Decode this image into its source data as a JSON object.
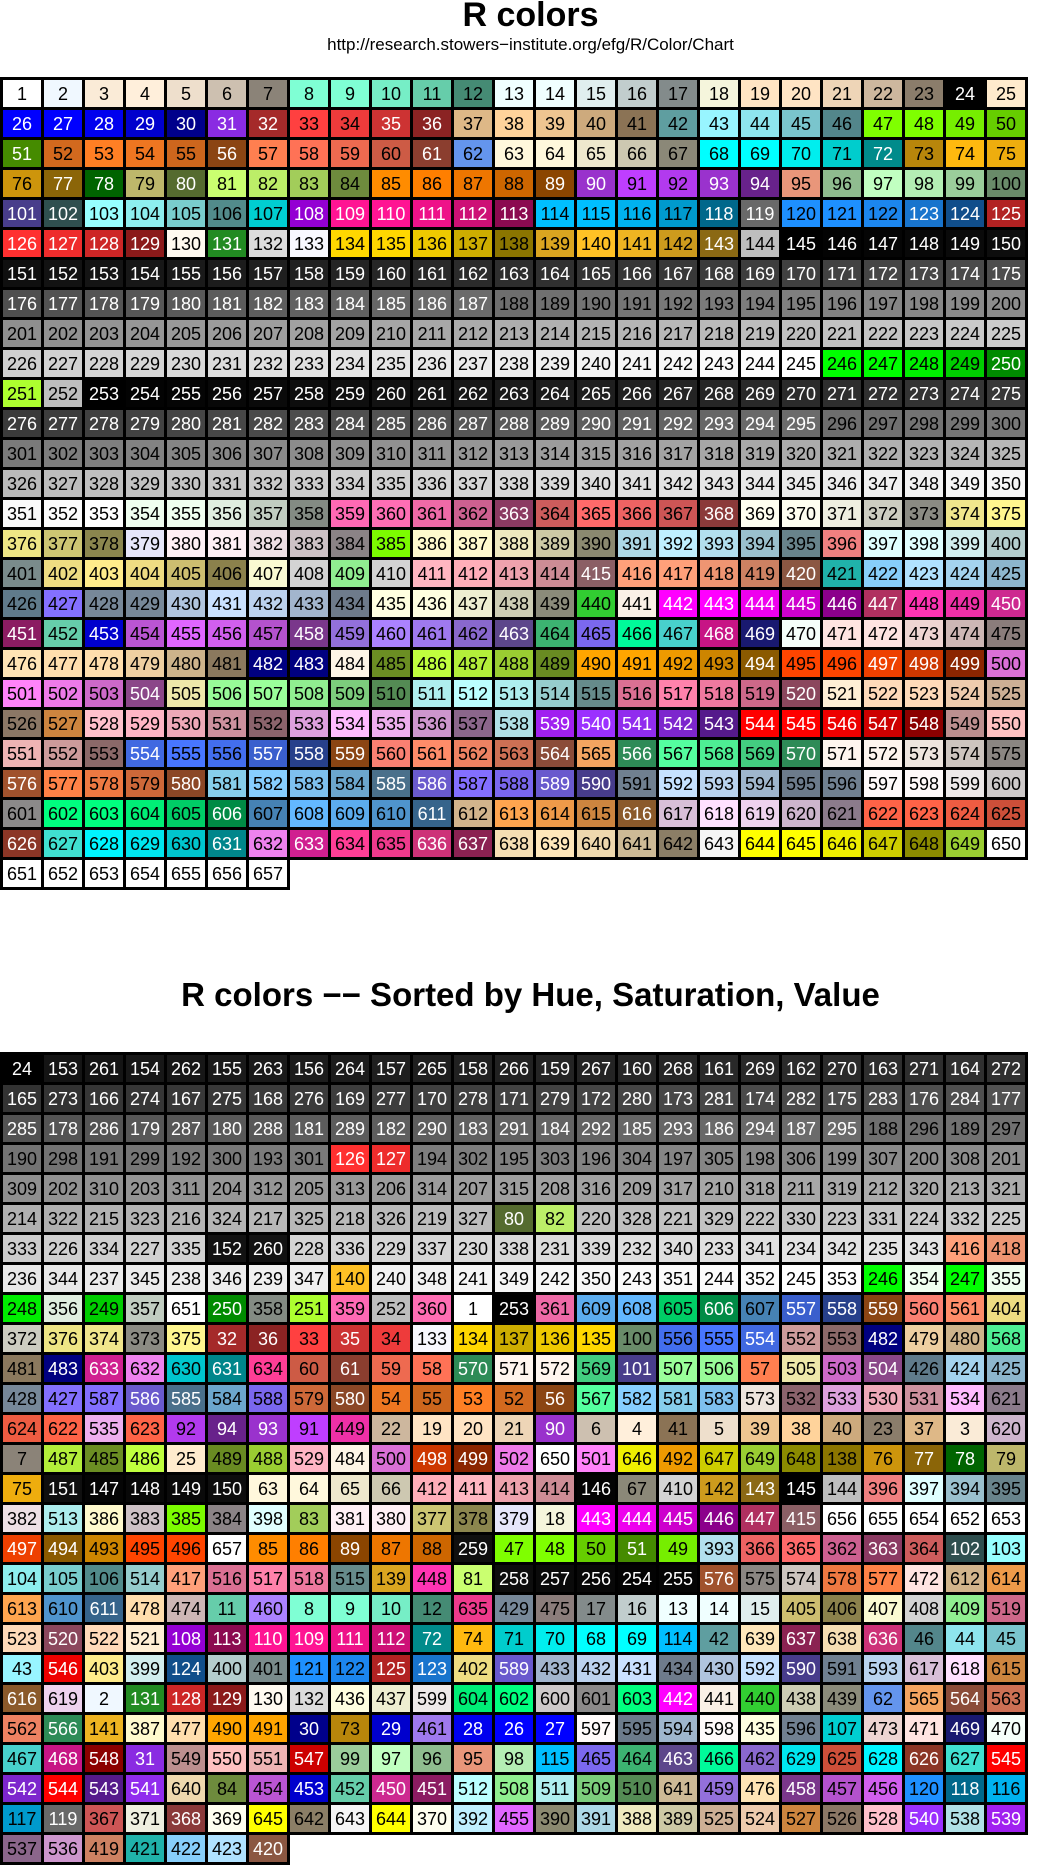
{
  "title": "R colors",
  "subtitle": "http://research.stowers−institute.org/efg/R/Color/Chart",
  "title2": "R colors −− Sorted by Hue, Saturation, Value",
  "chart_data": [
    {
      "type": "table",
      "title": "R colors",
      "subtitle": "http://research.stowers−institute.org/efg/R/Color/Chart",
      "columns": 25,
      "count": 657,
      "order": "index"
    },
    {
      "type": "table",
      "title": "R colors −− Sorted by Hue, Saturation, Value",
      "columns": 25,
      "order": [
        24,
        153,
        261,
        154,
        262,
        155,
        263,
        156,
        264,
        157,
        265,
        158,
        266,
        159,
        267,
        160,
        268,
        161,
        269,
        162,
        270,
        163,
        271,
        164,
        272,
        165,
        273,
        166,
        274,
        167,
        275,
        168,
        276,
        169,
        277,
        170,
        278,
        171,
        279,
        172,
        280,
        173,
        281,
        174,
        282,
        175,
        283,
        176,
        284,
        177,
        285,
        178,
        286,
        179,
        287,
        180,
        288,
        181,
        289,
        182,
        290,
        183,
        291,
        184,
        292,
        185,
        293,
        186,
        294,
        187,
        295,
        188,
        296,
        189,
        297,
        190,
        298,
        191,
        299,
        192,
        300,
        193,
        301,
        126,
        127,
        194,
        302,
        195,
        303,
        196,
        304,
        197,
        305,
        198,
        306,
        199,
        307,
        200,
        308,
        201,
        309,
        202,
        310,
        203,
        311,
        204,
        312,
        205,
        313,
        206,
        314,
        207,
        315,
        208,
        316,
        209,
        317,
        210,
        318,
        211,
        319,
        212,
        320,
        213,
        321,
        214,
        322,
        215,
        323,
        216,
        324,
        217,
        325,
        218,
        326,
        219,
        327,
        80,
        82,
        220,
        328,
        221,
        329,
        222,
        330,
        223,
        331,
        224,
        332,
        225,
        333,
        226,
        334,
        227,
        335,
        152,
        260,
        228,
        336,
        229,
        337,
        230,
        338,
        231,
        339,
        232,
        340,
        233,
        341,
        234,
        342,
        235,
        343,
        416,
        418,
        236,
        344,
        237,
        345,
        238,
        346,
        239,
        347,
        140,
        240,
        348,
        241,
        349,
        242,
        350,
        243,
        351,
        244,
        352,
        245,
        353,
        246,
        354,
        247,
        355,
        248,
        356,
        249,
        357,
        651,
        250,
        358,
        251,
        359,
        252,
        360,
        1,
        253,
        361,
        609,
        608,
        605,
        606,
        607,
        557,
        558,
        559,
        560,
        561,
        404,
        372,
        376,
        374,
        373,
        375,
        32,
        36,
        33,
        35,
        34,
        133,
        134,
        137,
        136,
        135,
        100,
        556,
        555,
        554,
        552,
        553,
        482,
        479,
        480,
        568,
        481,
        483,
        633,
        632,
        630,
        631,
        634,
        60,
        61,
        59,
        58,
        570,
        571,
        572,
        569,
        101,
        507,
        506,
        57,
        505,
        503,
        504,
        426,
        424,
        425,
        428,
        427,
        587,
        586,
        585,
        584,
        588,
        579,
        580,
        54,
        55,
        53,
        52,
        56,
        567,
        582,
        581,
        583,
        573,
        532,
        533,
        530,
        531,
        534,
        621,
        624,
        622,
        535,
        623,
        92,
        94,
        93,
        91,
        449,
        22,
        19,
        20,
        21,
        90,
        6,
        4,
        41,
        5,
        39,
        38,
        40,
        23,
        37,
        3,
        620,
        7,
        487,
        485,
        486,
        25,
        489,
        488,
        529,
        484,
        500,
        498,
        499,
        502,
        650,
        501,
        646,
        492,
        647,
        649,
        648,
        138,
        76,
        77,
        78,
        79,
        75,
        151,
        147,
        148,
        149,
        150,
        63,
        64,
        65,
        66,
        412,
        411,
        413,
        414,
        146,
        67,
        410,
        142,
        143,
        145,
        144,
        396,
        397,
        394,
        395,
        382,
        513,
        386,
        383,
        385,
        384,
        398,
        83,
        381,
        380,
        377,
        378,
        379,
        18,
        443,
        444,
        445,
        446,
        447,
        415,
        656,
        655,
        654,
        652,
        653,
        497,
        494,
        493,
        495,
        496,
        657,
        85,
        86,
        89,
        87,
        88,
        259,
        47,
        48,
        50,
        51,
        49,
        393,
        366,
        365,
        362,
        363,
        364,
        102,
        103,
        104,
        105,
        106,
        514,
        417,
        516,
        517,
        518,
        515,
        139,
        448,
        81,
        258,
        257,
        256,
        254,
        255,
        576,
        575,
        574,
        578,
        577,
        472,
        612,
        614,
        613,
        610,
        611,
        478,
        474,
        11,
        460,
        8,
        9,
        10,
        12,
        635,
        429,
        475,
        17,
        16,
        13,
        14,
        15,
        405,
        406,
        407,
        408,
        409,
        519,
        523,
        520,
        522,
        521,
        108,
        113,
        110,
        109,
        111,
        112,
        72,
        74,
        71,
        70,
        68,
        69,
        114,
        42,
        639,
        637,
        638,
        636,
        46,
        44,
        45,
        43,
        546,
        403,
        399,
        124,
        400,
        401,
        121,
        122,
        125,
        123,
        402,
        589,
        433,
        432,
        431,
        434,
        430,
        592,
        590,
        591,
        593,
        617,
        618,
        615,
        616,
        619,
        2,
        131,
        128,
        129,
        130,
        132,
        436,
        437,
        599,
        604,
        602,
        600,
        601,
        603,
        442,
        441,
        440,
        438,
        439,
        62,
        565,
        564,
        563,
        562,
        566,
        141,
        387,
        477,
        490,
        491,
        30,
        73,
        29,
        461,
        28,
        26,
        27,
        597,
        595,
        594,
        598,
        435,
        596,
        107,
        473,
        471,
        469,
        470,
        467,
        468,
        548,
        31,
        549,
        550,
        551,
        547,
        99,
        97,
        96,
        95,
        98,
        115,
        465,
        464,
        463,
        466,
        462,
        629,
        625,
        628,
        626,
        627,
        545,
        542,
        544,
        543,
        541,
        640,
        84,
        454,
        453,
        452,
        450,
        451,
        512,
        508,
        511,
        509,
        510,
        641,
        459,
        476,
        458,
        457,
        456,
        120,
        118,
        116,
        117,
        119,
        367,
        371,
        368,
        369,
        645,
        642,
        643,
        644,
        370,
        392,
        455,
        390,
        391,
        388,
        389,
        525,
        524,
        527,
        526,
        528,
        540,
        538,
        539,
        537,
        536,
        419,
        421,
        422,
        423,
        420
      ]
    }
  ],
  "colors": [
    "#FFFFFF",
    "#F0F8FF",
    "#FAEBD7",
    "#FFEFDB",
    "#EEDFCC",
    "#CDC0B0",
    "#8B8378",
    "#7FFFD4",
    "#7FFFD4",
    "#76EEC6",
    "#66CDAA",
    "#458B74",
    "#F0FFFF",
    "#F0FFFF",
    "#E0EEEE",
    "#C1CDCD",
    "#838B8B",
    "#F5F5DC",
    "#FFE4C4",
    "#FFE4C4",
    "#EED5B7",
    "#CDB79E",
    "#8B7D6B",
    "#000000",
    "#FFEBCD",
    "#0000FF",
    "#0000FF",
    "#0000EE",
    "#0000CD",
    "#00008B",
    "#8A2BE2",
    "#A52A2A",
    "#FF4040",
    "#EE3B3B",
    "#CD3333",
    "#8B2323",
    "#DEB887",
    "#FFD39B",
    "#EEC591",
    "#CDAA7D",
    "#8B7355",
    "#5F9EA0",
    "#98F5FF",
    "#8EE5EE",
    "#7AC5CD",
    "#53868B",
    "#7FFF00",
    "#7FFF00",
    "#76EE00",
    "#66CD00",
    "#458B00",
    "#D2691E",
    "#FF7F24",
    "#EE7621",
    "#CD661D",
    "#8B4513",
    "#FF7F50",
    "#FF7256",
    "#EE6A50",
    "#CD5B45",
    "#8B3E2F",
    "#6495ED",
    "#FFF8DC",
    "#FFF8DC",
    "#EEE8CD",
    "#CDC8B1",
    "#8B8878",
    "#00FFFF",
    "#00FFFF",
    "#00EEEE",
    "#00CDCD",
    "#008B8B",
    "#B8860B",
    "#FFB90F",
    "#EEAD0E",
    "#CD950C",
    "#8B6508",
    "#006400",
    "#BDB76B",
    "#556B2F",
    "#CAFF70",
    "#BCEE68",
    "#A2CD5A",
    "#6E8B3D",
    "#FF8C00",
    "#FF7F00",
    "#EE7600",
    "#CD6600",
    "#8B4500",
    "#9932CC",
    "#BF3EFF",
    "#B23AEE",
    "#9A32CD",
    "#68228B",
    "#E9967A",
    "#8FBC8F",
    "#C1FFC1",
    "#B4EEB4",
    "#9BCD9B",
    "#698B69",
    "#483D8B",
    "#2F4F4F",
    "#97FFFF",
    "#8DEEEE",
    "#79CDCD",
    "#528B8B",
    "#00CED1",
    "#9400D3",
    "#FF1493",
    "#FF1493",
    "#EE1289",
    "#CD1076",
    "#8B0A50",
    "#00BFFF",
    "#00BFFF",
    "#00B2EE",
    "#009ACD",
    "#00688B",
    "#696969",
    "#1E90FF",
    "#1E90FF",
    "#1C86EE",
    "#1874CD",
    "#104E8B",
    "#B22222",
    "#FF3030",
    "#EE2C2C",
    "#CD2626",
    "#8B1A1A",
    "#FFFAF0",
    "#228B22",
    "#DCDCDC",
    "#F8F8FF",
    "#FFD700",
    "#FFD700",
    "#EEC900",
    "#CDAD00",
    "#8B7500",
    "#DAA520",
    "#FFC125",
    "#EEB422",
    "#CD9B1D",
    "#8B6914",
    "#BEBEBE",
    "#000000",
    "#030303",
    "#050505",
    "#080808",
    "#0A0A0A",
    "#0D0D0D",
    "#0F0F0F",
    "#121212",
    "#141414",
    "#171717",
    "#1A1A1A",
    "#1C1C1C",
    "#1F1F1F",
    "#212121",
    "#242424",
    "#262626",
    "#292929",
    "#2B2B2B",
    "#2E2E2E",
    "#303030",
    "#333333",
    "#363636",
    "#383838",
    "#3B3B3B",
    "#3D3D3D",
    "#404040",
    "#424242",
    "#454545",
    "#474747",
    "#4A4A4A",
    "#4D4D4D",
    "#4F4F4F",
    "#525252",
    "#545454",
    "#575757",
    "#595959",
    "#5C5C5C",
    "#5E5E5E",
    "#616161",
    "#636363",
    "#666666",
    "#696969",
    "#6B6B6B",
    "#6E6E6E",
    "#707070",
    "#737373",
    "#757575",
    "#787878",
    "#7A7A7A",
    "#7D7D7D",
    "#7F7F7F",
    "#828282",
    "#858585",
    "#878787",
    "#8A8A8A",
    "#8C8C8C",
    "#8F8F8F",
    "#919191",
    "#949494",
    "#969696",
    "#999999",
    "#9C9C9C",
    "#9E9E9E",
    "#A1A1A1",
    "#A3A3A3",
    "#A6A6A6",
    "#A8A8A8",
    "#ABABAB",
    "#ADADAD",
    "#B0B0B0",
    "#B3B3B3",
    "#B5B5B5",
    "#B8B8B8",
    "#BABABA",
    "#BDBDBD",
    "#BFBFBF",
    "#C2C2C2",
    "#C4C4C4",
    "#C7C7C7",
    "#C9C9C9",
    "#CCCCCC",
    "#CFCFCF",
    "#D1D1D1",
    "#D4D4D4",
    "#D6D6D6",
    "#D9D9D9",
    "#DBDBDB",
    "#DEDEDE",
    "#E0E0E0",
    "#E3E3E3",
    "#E5E5E5",
    "#E8E8E8",
    "#EBEBEB",
    "#EDEDED",
    "#F0F0F0",
    "#F2F2F2",
    "#F5F5F5",
    "#F7F7F7",
    "#FAFAFA",
    "#FCFCFC",
    "#FFFFFF",
    "#00FF00",
    "#00FF00",
    "#00EE00",
    "#00CD00",
    "#008B00",
    "#ADFF2F",
    "#BEBEBE",
    "#000000",
    "#030303",
    "#050505",
    "#080808",
    "#0A0A0A",
    "#0D0D0D",
    "#0F0F0F",
    "#121212",
    "#141414",
    "#171717",
    "#1A1A1A",
    "#1C1C1C",
    "#1F1F1F",
    "#212121",
    "#242424",
    "#262626",
    "#292929",
    "#2B2B2B",
    "#2E2E2E",
    "#303030",
    "#333333",
    "#363636",
    "#383838",
    "#3B3B3B",
    "#3D3D3D",
    "#404040",
    "#424242",
    "#454545",
    "#474747",
    "#4A4A4A",
    "#4D4D4D",
    "#4F4F4F",
    "#525252",
    "#545454",
    "#575757",
    "#595959",
    "#5C5C5C",
    "#5E5E5E",
    "#616161",
    "#636363",
    "#666666",
    "#696969",
    "#6B6B6B",
    "#6E6E6E",
    "#707070",
    "#737373",
    "#757575",
    "#787878",
    "#7A7A7A",
    "#7D7D7D",
    "#7F7F7F",
    "#828282",
    "#858585",
    "#878787",
    "#8A8A8A",
    "#8C8C8C",
    "#8F8F8F",
    "#919191",
    "#949494",
    "#969696",
    "#999999",
    "#9C9C9C",
    "#9E9E9E",
    "#A1A1A1",
    "#A3A3A3",
    "#A6A6A6",
    "#A8A8A8",
    "#ABABAB",
    "#ADADAD",
    "#B0B0B0",
    "#B3B3B3",
    "#B5B5B5",
    "#B8B8B8",
    "#BABABA",
    "#BDBDBD",
    "#BFBFBF",
    "#C2C2C2",
    "#C4C4C4",
    "#C7C7C7",
    "#C9C9C9",
    "#CCCCCC",
    "#CFCFCF",
    "#D1D1D1",
    "#D4D4D4",
    "#D6D6D6",
    "#D9D9D9",
    "#DBDBDB",
    "#DEDEDE",
    "#E0E0E0",
    "#E3E3E3",
    "#E5E5E5",
    "#E8E8E8",
    "#EBEBEB",
    "#EDEDED",
    "#F0F0F0",
    "#F2F2F2",
    "#F5F5F5",
    "#F7F7F7",
    "#FAFAFA",
    "#FCFCFC",
    "#FFFFFF",
    "#F0FFF0",
    "#F0FFF0",
    "#E0EEE0",
    "#C1CDC1",
    "#838B83",
    "#FF69B4",
    "#FF6EB4",
    "#EE6AA7",
    "#CD6090",
    "#8B3A62",
    "#CD5C5C",
    "#FF6A6A",
    "#EE6363",
    "#CD5555",
    "#8B3A3A",
    "#FFFFF0",
    "#FFFFF0",
    "#EEEEE0",
    "#CDCDC1",
    "#8B8B83",
    "#F0E68C",
    "#FFF68F",
    "#EEE685",
    "#CDC673",
    "#8B864E",
    "#E6E6FA",
    "#FFF0F5",
    "#FFF0F5",
    "#EEE0E5",
    "#CDC1C5",
    "#8B8386",
    "#7CFC00",
    "#FFFACD",
    "#FFFACD",
    "#EEE9BF",
    "#CDC9A5",
    "#8B8970",
    "#ADD8E6",
    "#BFEFFF",
    "#B2DFEE",
    "#9AC0CD",
    "#68838B",
    "#F08080",
    "#E0FFFF",
    "#E0FFFF",
    "#D1EEEE",
    "#B4CDCD",
    "#7A8B8B",
    "#EEDD82",
    "#FFEC8B",
    "#EEDC82",
    "#CDBE70",
    "#8B814C",
    "#FAFAD2",
    "#D3D3D3",
    "#90EE90",
    "#D3D3D3",
    "#FFB6C1",
    "#FFAEB9",
    "#EEA2AD",
    "#CD8C95",
    "#8B5F65",
    "#FFA07A",
    "#FFA07A",
    "#EE9572",
    "#CD8162",
    "#8B5742",
    "#20B2AA",
    "#87CEFA",
    "#B0E2FF",
    "#A4D3EE",
    "#8DB6CD",
    "#607B8B",
    "#8470FF",
    "#778899",
    "#778899",
    "#B0C4DE",
    "#CAE1FF",
    "#BCD2EE",
    "#A2B5CD",
    "#6E7B8B",
    "#FFFFE0",
    "#FFFFE0",
    "#EEEED1",
    "#CDCDB4",
    "#8B8B7A",
    "#32CD32",
    "#FAF0E6",
    "#FF00FF",
    "#FF00FF",
    "#EE00EE",
    "#CD00CD",
    "#8B008B",
    "#B03060",
    "#FF34B3",
    "#EE30A7",
    "#CD2990",
    "#8B1C62",
    "#66CDAA",
    "#0000CD",
    "#BA55D3",
    "#E066FF",
    "#D15FEE",
    "#B452CD",
    "#7A378B",
    "#9370DB",
    "#AB82FF",
    "#9F79EE",
    "#8968CD",
    "#5D478B",
    "#3CB371",
    "#7B68EE",
    "#00FA9A",
    "#48D1CC",
    "#C71585",
    "#191970",
    "#F5FFFA",
    "#FFE4E1",
    "#FFE4E1",
    "#EED5D2",
    "#CDB7B5",
    "#8B7D7B",
    "#FFE4B5",
    "#FFDEAD",
    "#FFDEAD",
    "#EECFA1",
    "#CDB38B",
    "#8B795E",
    "#000080",
    "#000080",
    "#FDF5E6",
    "#6B8E23",
    "#C0FF3E",
    "#B3EE3A",
    "#9ACD32",
    "#698B22",
    "#FFA500",
    "#FFA500",
    "#EE9A00",
    "#CD8500",
    "#8B5A00",
    "#FF4500",
    "#FF4500",
    "#EE4000",
    "#CD3700",
    "#8B2500",
    "#DA70D6",
    "#FF83FA",
    "#EE7AE9",
    "#CD69C9",
    "#8B4789",
    "#EEE8AA",
    "#98FB98",
    "#9AFF9A",
    "#90EE90",
    "#7CCD7C",
    "#548B54",
    "#AFEEEE",
    "#BBFFFF",
    "#AEEEEE",
    "#96CDCD",
    "#668B8B",
    "#DB7093",
    "#FF82AB",
    "#EE799F",
    "#CD6889",
    "#8B475D",
    "#FFEFD5",
    "#FFDAB9",
    "#FFDAB9",
    "#EECBAD",
    "#CDAF95",
    "#8B7765",
    "#CD853F",
    "#FFC0CB",
    "#FFB5C5",
    "#EEA9B8",
    "#CD919E",
    "#8B636C",
    "#DDA0DD",
    "#FFBBFF",
    "#EEAEEE",
    "#CD96CD",
    "#8B668B",
    "#B0E0E6",
    "#A020F0",
    "#9B30FF",
    "#912CEE",
    "#7D26CD",
    "#551A8B",
    "#FF0000",
    "#FF0000",
    "#EE0000",
    "#CD0000",
    "#8B0000",
    "#BC8F8F",
    "#FFC1C1",
    "#EEB4B4",
    "#CD9B9B",
    "#8B6969",
    "#4169E1",
    "#4876FF",
    "#436EEE",
    "#3A5FCD",
    "#27408B",
    "#8B4513",
    "#FA8072",
    "#FF8C69",
    "#EE8262",
    "#CD7054",
    "#8B4C39",
    "#F4A460",
    "#2E8B57",
    "#54FF9F",
    "#4EEE94",
    "#43CD80",
    "#2E8B57",
    "#FFF5EE",
    "#FFF5EE",
    "#EEE5DE",
    "#CDC5BF",
    "#8B8682",
    "#A0522D",
    "#FF8247",
    "#EE7942",
    "#CD6839",
    "#8B4726",
    "#87CEEB",
    "#87CEFF",
    "#7EC0EE",
    "#6CA6CD",
    "#4A708B",
    "#6A5ACD",
    "#836FFF",
    "#7A67EE",
    "#6959CD",
    "#473C8B",
    "#708090",
    "#C6E2FF",
    "#B9D3EE",
    "#9FB6CD",
    "#6C7B8B",
    "#708090",
    "#FFFAFA",
    "#FFFAFA",
    "#EEE9E9",
    "#CDC9C9",
    "#8B8989",
    "#00FF7F",
    "#00FF7F",
    "#00EE76",
    "#00CD66",
    "#008B45",
    "#4682B4",
    "#63B8FF",
    "#5CACEE",
    "#4F94CD",
    "#36648B",
    "#D2B48C",
    "#FFA54F",
    "#EE9A49",
    "#CD853F",
    "#8B5A2B",
    "#D8BFD8",
    "#FFE1FF",
    "#EED2EE",
    "#CDB5CD",
    "#8B7B8B",
    "#FF6347",
    "#FF6347",
    "#EE5C42",
    "#CD4F39",
    "#8B3626",
    "#40E0D0",
    "#00F5FF",
    "#00E5EE",
    "#00C5CD",
    "#00868B",
    "#EE82EE",
    "#D02090",
    "#FF3E96",
    "#EE3A8C",
    "#CD3278",
    "#8B2252",
    "#F5DEB3",
    "#FFE7BA",
    "#EED8AE",
    "#CDBA96",
    "#8B7E66",
    "#F5F5F5",
    "#FFFF00",
    "#FFFF00",
    "#EEEE00",
    "#CDCD00",
    "#8B8B00",
    "#9ACD32"
  ]
}
